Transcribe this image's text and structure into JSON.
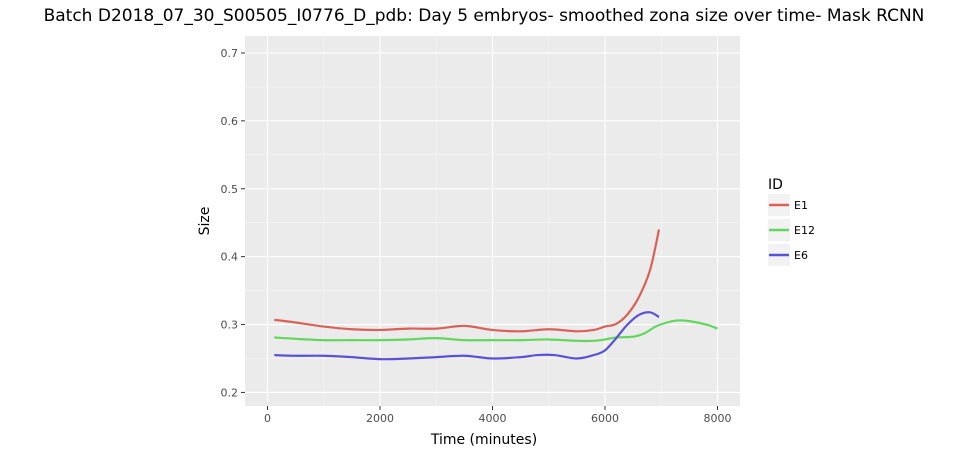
{
  "chart_data": {
    "type": "line",
    "title": "Batch D2018_07_30_S00505_I0776_D_pdb: Day 5 embryos- smoothed zona size over time- Mask RCNN",
    "xlabel": "Time (minutes)",
    "ylabel": "Size",
    "xlim": [
      -400,
      8400
    ],
    "ylim": [
      0.18,
      0.725
    ],
    "x_ticks": [
      0,
      2000,
      4000,
      6000,
      8000
    ],
    "x_tick_labels": [
      "0",
      "2000",
      "4000",
      "6000",
      "8000"
    ],
    "y_ticks": [
      0.2,
      0.3,
      0.4,
      0.5,
      0.6,
      0.7
    ],
    "y_tick_labels": [
      "0.2",
      "0.3",
      "0.4",
      "0.5",
      "0.6",
      "0.7"
    ],
    "grid": true,
    "legend": {
      "title": "ID",
      "position": "right"
    },
    "series": [
      {
        "name": "E1",
        "color": "#da6158",
        "x": [
          120,
          500,
          1000,
          1500,
          2000,
          2500,
          3000,
          3500,
          4000,
          4500,
          5000,
          5500,
          5800,
          6000,
          6200,
          6400,
          6600,
          6800,
          6960
        ],
        "y": [
          0.307,
          0.303,
          0.297,
          0.293,
          0.292,
          0.294,
          0.294,
          0.298,
          0.292,
          0.29,
          0.293,
          0.29,
          0.292,
          0.297,
          0.301,
          0.315,
          0.34,
          0.38,
          0.44
        ]
      },
      {
        "name": "E12",
        "color": "#62d65d",
        "x": [
          120,
          500,
          1000,
          1500,
          2000,
          2500,
          3000,
          3500,
          4000,
          4500,
          5000,
          5500,
          5800,
          6000,
          6200,
          6500,
          6700,
          6900,
          7100,
          7300,
          7500,
          7800,
          8000
        ],
        "y": [
          0.281,
          0.279,
          0.277,
          0.277,
          0.277,
          0.278,
          0.28,
          0.277,
          0.277,
          0.277,
          0.278,
          0.276,
          0.276,
          0.278,
          0.281,
          0.282,
          0.287,
          0.297,
          0.303,
          0.306,
          0.305,
          0.3,
          0.294
        ]
      },
      {
        "name": "E6",
        "color": "#5a52d6",
        "x": [
          120,
          500,
          1000,
          1500,
          2000,
          2500,
          3000,
          3500,
          4000,
          4500,
          4800,
          5100,
          5500,
          5800,
          6000,
          6200,
          6400,
          6600,
          6800,
          6960
        ],
        "y": [
          0.255,
          0.254,
          0.254,
          0.252,
          0.249,
          0.25,
          0.252,
          0.254,
          0.25,
          0.252,
          0.255,
          0.255,
          0.25,
          0.255,
          0.262,
          0.28,
          0.3,
          0.314,
          0.318,
          0.311
        ]
      }
    ]
  }
}
